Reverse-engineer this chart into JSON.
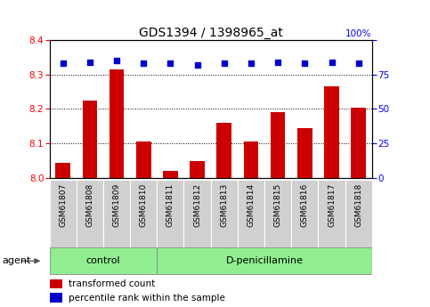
{
  "title": "GDS1394 / 1398965_at",
  "samples": [
    "GSM61807",
    "GSM61808",
    "GSM61809",
    "GSM61810",
    "GSM61811",
    "GSM61812",
    "GSM61813",
    "GSM61814",
    "GSM61815",
    "GSM61816",
    "GSM61817",
    "GSM61818"
  ],
  "bar_values": [
    8.045,
    8.225,
    8.315,
    8.105,
    8.02,
    8.048,
    8.16,
    8.105,
    8.19,
    8.145,
    8.265,
    8.205
  ],
  "percentile_values": [
    83,
    84,
    85,
    83,
    83,
    82,
    83,
    83,
    84,
    83,
    84,
    83
  ],
  "ylim_left": [
    8.0,
    8.4
  ],
  "ylim_right": [
    0,
    100
  ],
  "yticks_left": [
    8.0,
    8.1,
    8.2,
    8.3,
    8.4
  ],
  "yticks_right": [
    0,
    25,
    50,
    75,
    100
  ],
  "bar_color": "#cc0000",
  "dot_color": "#0000cc",
  "control_samples": 4,
  "control_label": "control",
  "treatment_label": "D-penicillamine",
  "agent_label": "agent",
  "legend_bar_label": "transformed count",
  "legend_dot_label": "percentile rank within the sample",
  "control_bg": "#90ee90",
  "treatment_bg": "#90ee90",
  "tick_bg": "#d0d0d0",
  "title_fontsize": 10,
  "tick_fontsize": 6.5,
  "axis_label_fontsize": 7.5,
  "legend_fontsize": 7.5,
  "agent_fontsize": 8,
  "group_fontsize": 8
}
